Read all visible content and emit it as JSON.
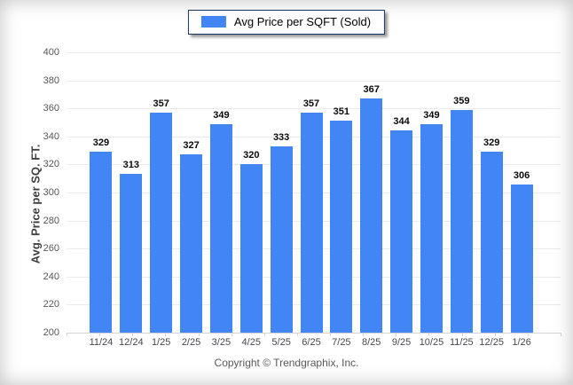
{
  "legend": {
    "label": "Avg Price per SQFT (Sold)"
  },
  "footer": {
    "copyright": "Copyright © Trendgraphix, Inc."
  },
  "chart_data": {
    "type": "bar",
    "title": "",
    "xlabel": "",
    "ylabel": "Avg. Price per SQ. FT.",
    "categories": [
      "11/24",
      "12/24",
      "1/25",
      "2/25",
      "3/25",
      "4/25",
      "5/25",
      "6/25",
      "7/25",
      "8/25",
      "9/25",
      "10/25",
      "11/25",
      "12/25",
      "1/26"
    ],
    "series": [
      {
        "name": "Avg Price per SQFT (Sold)",
        "values": [
          329,
          313,
          357,
          327,
          349,
          320,
          333,
          357,
          351,
          367,
          344,
          349,
          359,
          329,
          306
        ]
      }
    ],
    "ylim": [
      200,
      400
    ],
    "yticks": [
      200,
      220,
      240,
      260,
      280,
      300,
      320,
      340,
      360,
      380,
      400
    ],
    "grid": true,
    "legend_position": "top-center",
    "colors": {
      "bar": "#4285F4",
      "legend_border": "#17375E",
      "gridline": "#ebebeb",
      "axisline": "#d4d4d4",
      "value_label": "#0a0a0a",
      "tick_label": "#565656"
    }
  }
}
